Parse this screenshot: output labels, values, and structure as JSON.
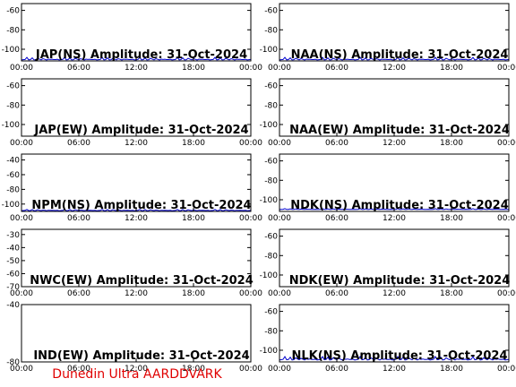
{
  "credit": "Dunedin Ultra AARDDVARK",
  "colors": {
    "trace": "#0000cc",
    "frame": "#000000",
    "credit": "#e00000"
  },
  "x_ticks": [
    "00:00",
    "06:00",
    "12:00",
    "18:00",
    "00:00"
  ],
  "chart_data": [
    {
      "type": "line",
      "title": "JAP(NS) Amplitude: 31-Oct-2024",
      "ylim": [
        -112,
        -53
      ],
      "yticks": [
        -60,
        -80,
        -100
      ],
      "xlim": [
        0,
        24
      ],
      "trace_level": -111,
      "noise": 3
    },
    {
      "type": "line",
      "title": "NAA(NS) Amplitude: 31-Oct-2024",
      "ylim": [
        -112,
        -53
      ],
      "yticks": [
        -60,
        -80,
        -100
      ],
      "xlim": [
        0,
        24
      ],
      "trace_level": -111,
      "noise": 3
    },
    {
      "type": "line",
      "title": "JAP(EW) Amplitude: 31-Oct-2024",
      "ylim": [
        -112,
        -53
      ],
      "yticks": [
        -60,
        -80,
        -100
      ],
      "xlim": [
        0,
        24
      ],
      "trace_level": null,
      "noise": 0
    },
    {
      "type": "line",
      "title": "NAA(EW) Amplitude: 31-Oct-2024",
      "ylim": [
        -112,
        -53
      ],
      "yticks": [
        -60,
        -80,
        -100
      ],
      "xlim": [
        0,
        24
      ],
      "trace_level": null,
      "noise": 0
    },
    {
      "type": "line",
      "title": "NPM(NS) Amplitude: 31-Oct-2024",
      "ylim": [
        -110,
        -32
      ],
      "yticks": [
        -40,
        -60,
        -80,
        -100
      ],
      "xlim": [
        0,
        24
      ],
      "trace_level": -109,
      "noise": 2
    },
    {
      "type": "line",
      "title": "NDK(NS) Amplitude: 31-Oct-2024",
      "ylim": [
        -112,
        -53
      ],
      "yticks": [
        -60,
        -80,
        -100
      ],
      "xlim": [
        0,
        24
      ],
      "trace_level": -110,
      "noise": 1
    },
    {
      "type": "line",
      "title": "NWC(EW) Amplitude: 31-Oct-2024",
      "ylim": [
        -70,
        -26
      ],
      "yticks": [
        -30,
        -40,
        -50,
        -60,
        -70
      ],
      "xlim": [
        0,
        24
      ],
      "trace_level": null,
      "noise": 0
    },
    {
      "type": "line",
      "title": "NDK(EW) Amplitude: 31-Oct-2024",
      "ylim": [
        -112,
        -53
      ],
      "yticks": [
        -60,
        -80,
        -100
      ],
      "xlim": [
        0,
        24
      ],
      "trace_level": null,
      "noise": 0
    },
    {
      "type": "line",
      "title": "IND(EW) Amplitude: 31-Oct-2024",
      "ylim": [
        -80,
        -40
      ],
      "yticks": [
        -40,
        -80
      ],
      "xlim": [
        0,
        24
      ],
      "trace_level": null,
      "noise": 0
    },
    {
      "type": "line",
      "title": "NLK(NS) Amplitude: 31-Oct-2024",
      "ylim": [
        -112,
        -53
      ],
      "yticks": [
        -60,
        -80,
        -100
      ],
      "xlim": [
        0,
        24
      ],
      "trace_level": -110,
      "noise": 4
    }
  ]
}
